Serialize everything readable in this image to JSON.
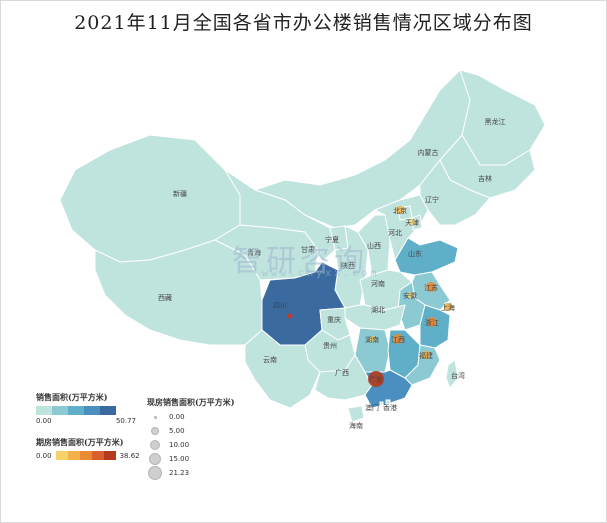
{
  "title": "2021年11月全国各省市办公楼销售情况区域分布图",
  "colors": {
    "area_scale": [
      "#bfe3dd",
      "#8ccad3",
      "#5fafc8",
      "#4a8fbf",
      "#3a6a9f"
    ],
    "stock_scale": [
      "#f6d36a",
      "#f3b14a",
      "#e98a34",
      "#d9602a",
      "#b33b1f"
    ]
  },
  "regions": [
    {
      "id": "heilongjiang",
      "label": "黑龙江",
      "sales_tier": 0
    },
    {
      "id": "jilin",
      "label": "吉林",
      "sales_tier": 0
    },
    {
      "id": "liaoning",
      "label": "辽宁",
      "sales_tier": 0
    },
    {
      "id": "neimenggu",
      "label": "内蒙古",
      "sales_tier": 0
    },
    {
      "id": "xinjiang",
      "label": "新疆",
      "sales_tier": 0
    },
    {
      "id": "xizang",
      "label": "西藏",
      "sales_tier": 0
    },
    {
      "id": "qinghai",
      "label": "青海",
      "sales_tier": 0
    },
    {
      "id": "gansu",
      "label": "甘肃",
      "sales_tier": 0
    },
    {
      "id": "ningxia",
      "label": "宁夏",
      "sales_tier": 0
    },
    {
      "id": "shaanxi",
      "label": "陕西",
      "sales_tier": 0
    },
    {
      "id": "shanxi",
      "label": "山西",
      "sales_tier": 0
    },
    {
      "id": "hebei",
      "label": "河北",
      "sales_tier": 0
    },
    {
      "id": "beijing",
      "label": "北京",
      "sales_tier": 0
    },
    {
      "id": "tianjin",
      "label": "天津",
      "sales_tier": 0
    },
    {
      "id": "shandong",
      "label": "山东",
      "sales_tier": 2
    },
    {
      "id": "henan",
      "label": "河南",
      "sales_tier": 0
    },
    {
      "id": "jiangsu",
      "label": "江苏",
      "sales_tier": 1
    },
    {
      "id": "anhui",
      "label": "安徽",
      "sales_tier": 1
    },
    {
      "id": "shanghai",
      "label": "上海",
      "sales_tier": 1
    },
    {
      "id": "zhejiang",
      "label": "浙江",
      "sales_tier": 2
    },
    {
      "id": "hubei",
      "label": "湖北",
      "sales_tier": 0
    },
    {
      "id": "hunan",
      "label": "湖南",
      "sales_tier": 1
    },
    {
      "id": "jiangxi",
      "label": "江西",
      "sales_tier": 2
    },
    {
      "id": "fujian",
      "label": "福建",
      "sales_tier": 1
    },
    {
      "id": "sichuan",
      "label": "四川",
      "sales_tier": 4
    },
    {
      "id": "chongqing",
      "label": "重庆",
      "sales_tier": 0
    },
    {
      "id": "guizhou",
      "label": "贵州",
      "sales_tier": 0
    },
    {
      "id": "yunnan",
      "label": "云南",
      "sales_tier": 0
    },
    {
      "id": "guangxi",
      "label": "广西",
      "sales_tier": 0
    },
    {
      "id": "guangdong",
      "label": "广东",
      "sales_tier": 3
    },
    {
      "id": "hainan",
      "label": "海南",
      "sales_tier": 0
    },
    {
      "id": "taiwan",
      "label": "台湾",
      "sales_tier": 0
    },
    {
      "id": "hongkong",
      "label": "香港",
      "sales_tier": 0
    },
    {
      "id": "macau",
      "label": "澳门",
      "sales_tier": 0
    }
  ],
  "stock_markers": [
    {
      "id": "beijing",
      "tier": 1
    },
    {
      "id": "tianjin",
      "tier": 0
    },
    {
      "id": "jiangsu",
      "tier": 2
    },
    {
      "id": "zhejiang",
      "tier": 2
    },
    {
      "id": "shanghai",
      "tier": 1
    },
    {
      "id": "guangdong",
      "tier": 4
    },
    {
      "id": "anhui",
      "tier": 0
    },
    {
      "id": "hunan",
      "tier": 0
    },
    {
      "id": "jiangxi",
      "tier": 2
    },
    {
      "id": "fujian",
      "tier": 1
    }
  ],
  "legend_sales": {
    "title": "销售面积(万平方米)",
    "min": "0.00",
    "max": "50.77"
  },
  "legend_stock": {
    "title": "期房销售面积(万平方米)",
    "min": "0.00",
    "max": "38.62"
  },
  "legend_existing": {
    "title": "现房销售面积(万平方米)",
    "items": [
      "0.00",
      "5.00",
      "10.00",
      "15.00",
      "21.23"
    ]
  },
  "watermark": {
    "text": "智研咨询",
    "url": "www.chyxx.com"
  }
}
